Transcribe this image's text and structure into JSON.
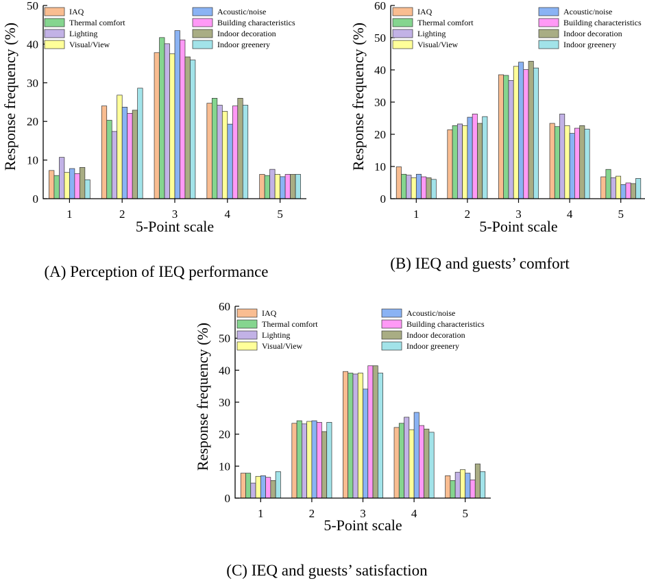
{
  "chart_data": [
    {
      "type": "bar",
      "caption": "(A) Perception of IEQ performance",
      "xlabel": "5-Point scale",
      "ylabel": "Response frequency (%)",
      "ylim": [
        0,
        50
      ],
      "yticks": [
        0,
        10,
        20,
        30,
        40,
        50
      ],
      "categories": [
        "1",
        "2",
        "3",
        "4",
        "5"
      ],
      "series": [
        {
          "name": "IAQ",
          "color": "#F9BD91",
          "values": [
            7.3,
            24.0,
            37.8,
            24.7,
            6.3
          ]
        },
        {
          "name": "Thermal comfort",
          "color": "#85D58F",
          "values": [
            6.0,
            20.3,
            41.7,
            26.0,
            6.0
          ]
        },
        {
          "name": "Lighting",
          "color": "#C2B2E6",
          "values": [
            10.7,
            17.4,
            40.1,
            24.2,
            7.6
          ]
        },
        {
          "name": "Visual/View",
          "color": "#FFFF99",
          "values": [
            6.8,
            26.8,
            37.5,
            22.6,
            6.3
          ]
        },
        {
          "name": "Acoustic/noise",
          "color": "#8AB3F4",
          "values": [
            7.8,
            23.7,
            43.5,
            19.3,
            5.7
          ]
        },
        {
          "name": "Building characteristics",
          "color": "#FF99F6",
          "values": [
            6.5,
            22.1,
            41.1,
            24.0,
            6.3
          ]
        },
        {
          "name": "Indoor decoration",
          "color": "#A9AD84",
          "values": [
            8.1,
            22.9,
            36.7,
            26.0,
            6.3
          ]
        },
        {
          "name": "Indoor greenery",
          "color": "#A2E3E9",
          "values": [
            4.9,
            28.6,
            35.9,
            24.2,
            6.3
          ]
        }
      ]
    },
    {
      "type": "bar",
      "caption": "(B) IEQ and guests’ comfort",
      "xlabel": "5-Point scale",
      "ylabel": "Response frequency (%)",
      "ylim": [
        0,
        60
      ],
      "yticks": [
        0,
        10,
        20,
        30,
        40,
        50,
        60
      ],
      "categories": [
        "1",
        "2",
        "3",
        "4",
        "5"
      ],
      "series": [
        {
          "name": "IAQ",
          "color": "#F9BD91",
          "values": [
            9.9,
            21.4,
            38.5,
            23.4,
            6.8
          ]
        },
        {
          "name": "Thermal comfort",
          "color": "#85D58F",
          "values": [
            7.6,
            22.7,
            38.3,
            22.4,
            9.1
          ]
        },
        {
          "name": "Lighting",
          "color": "#C2B2E6",
          "values": [
            7.3,
            23.2,
            36.7,
            26.3,
            6.5
          ]
        },
        {
          "name": "Visual/View",
          "color": "#FFFF99",
          "values": [
            6.5,
            22.7,
            41.1,
            22.7,
            7.0
          ]
        },
        {
          "name": "Acoustic/noise",
          "color": "#8AB3F4",
          "values": [
            7.6,
            25.3,
            42.4,
            20.3,
            4.4
          ]
        },
        {
          "name": "Building characteristics",
          "color": "#FF99F6",
          "values": [
            6.8,
            26.3,
            40.1,
            21.9,
            4.9
          ]
        },
        {
          "name": "Indoor decoration",
          "color": "#A9AD84",
          "values": [
            6.5,
            23.4,
            42.7,
            22.7,
            4.7
          ]
        },
        {
          "name": "Indoor greenery",
          "color": "#A2E3E9",
          "values": [
            6.0,
            25.5,
            40.6,
            21.6,
            6.3
          ]
        }
      ]
    },
    {
      "type": "bar",
      "caption": "(C) IEQ and guests’ satisfaction",
      "xlabel": "5-Point scale",
      "ylabel": "Response frequency (%)",
      "ylim": [
        0,
        60
      ],
      "yticks": [
        0,
        10,
        20,
        30,
        40,
        50,
        60
      ],
      "categories": [
        "1",
        "2",
        "3",
        "4",
        "5"
      ],
      "series": [
        {
          "name": "IAQ",
          "color": "#F9BD91",
          "values": [
            7.8,
            23.4,
            39.6,
            22.1,
            7.0
          ]
        },
        {
          "name": "Thermal comfort",
          "color": "#85D58F",
          "values": [
            7.8,
            24.2,
            39.1,
            23.4,
            5.5
          ]
        },
        {
          "name": "Lighting",
          "color": "#C2B2E6",
          "values": [
            4.7,
            23.2,
            38.8,
            25.3,
            8.1
          ]
        },
        {
          "name": "Visual/View",
          "color": "#FFFF99",
          "values": [
            6.8,
            24.0,
            39.1,
            21.4,
            8.9
          ]
        },
        {
          "name": "Acoustic/noise",
          "color": "#8AB3F4",
          "values": [
            7.0,
            24.2,
            34.1,
            26.8,
            7.8
          ]
        },
        {
          "name": "Building characteristics",
          "color": "#FF99F6",
          "values": [
            6.5,
            23.7,
            41.4,
            22.7,
            5.7
          ]
        },
        {
          "name": "Indoor decoration",
          "color": "#A9AD84",
          "values": [
            5.5,
            20.8,
            41.4,
            21.6,
            10.7
          ]
        },
        {
          "name": "Indoor greenery",
          "color": "#A2E3E9",
          "values": [
            8.3,
            23.7,
            39.1,
            20.6,
            8.3
          ]
        }
      ]
    }
  ]
}
